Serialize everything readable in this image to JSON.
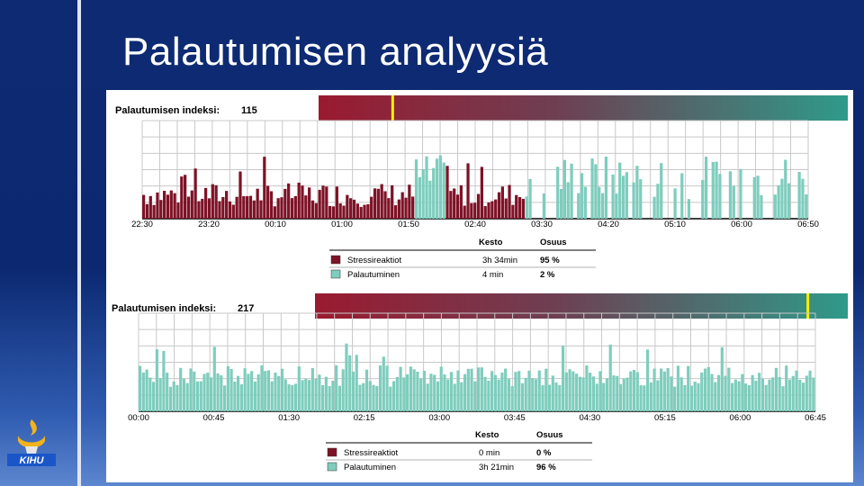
{
  "slide": {
    "title": "Palautumisen analyysiä",
    "logo_text": "KIHU"
  },
  "colors": {
    "stress": "#7e1226",
    "recovery": "#7ecdbd",
    "marker": "#f7f000",
    "grid": "#c8c8c8"
  },
  "chart_data": [
    {
      "type": "bar",
      "index_label": "Palautumisen indeksi:",
      "index_value": "115",
      "index_marker": 0.14,
      "x_ticks": [
        "22:30",
        "23:20",
        "00:10",
        "01:00",
        "01:50",
        "02:40",
        "03:30",
        "04:20",
        "05:10",
        "06:00",
        "06:50"
      ],
      "series": [
        {
          "name": "Stressireaktiot",
          "segments": [
            [
              0,
              78
            ],
            [
              88,
              110
            ]
          ]
        },
        {
          "name": "Palautuminen",
          "segments": [
            [
              79,
              87
            ],
            [
              111,
              192
            ]
          ]
        }
      ],
      "values_seed": 7,
      "legend": {
        "headers": [
          "Kesto",
          "Osuus"
        ],
        "rows": [
          {
            "name": "Stressireaktiot",
            "duration": "3h 34min",
            "share": "95 %"
          },
          {
            "name": "Palautuminen",
            "duration": "4 min",
            "share": "2 %"
          }
        ]
      }
    },
    {
      "type": "bar",
      "index_label": "Palautumisen indeksi:",
      "index_value": "217",
      "index_marker": 0.925,
      "x_ticks": [
        "00:00",
        "00:45",
        "01:30",
        "02:15",
        "03:00",
        "03:45",
        "04:30",
        "05:15",
        "06:00",
        "06:45"
      ],
      "series": [
        {
          "name": "Stressireaktiot",
          "segments": []
        },
        {
          "name": "Palautuminen",
          "segments": [
            [
              0,
              199
            ]
          ]
        }
      ],
      "values_seed": 19,
      "legend": {
        "headers": [
          "Kesto",
          "Osuus"
        ],
        "rows": [
          {
            "name": "Stressireaktiot",
            "duration": "0 min",
            "share": "0 %"
          },
          {
            "name": "Palautuminen",
            "duration": "3h 21min",
            "share": "96 %"
          }
        ]
      }
    }
  ]
}
